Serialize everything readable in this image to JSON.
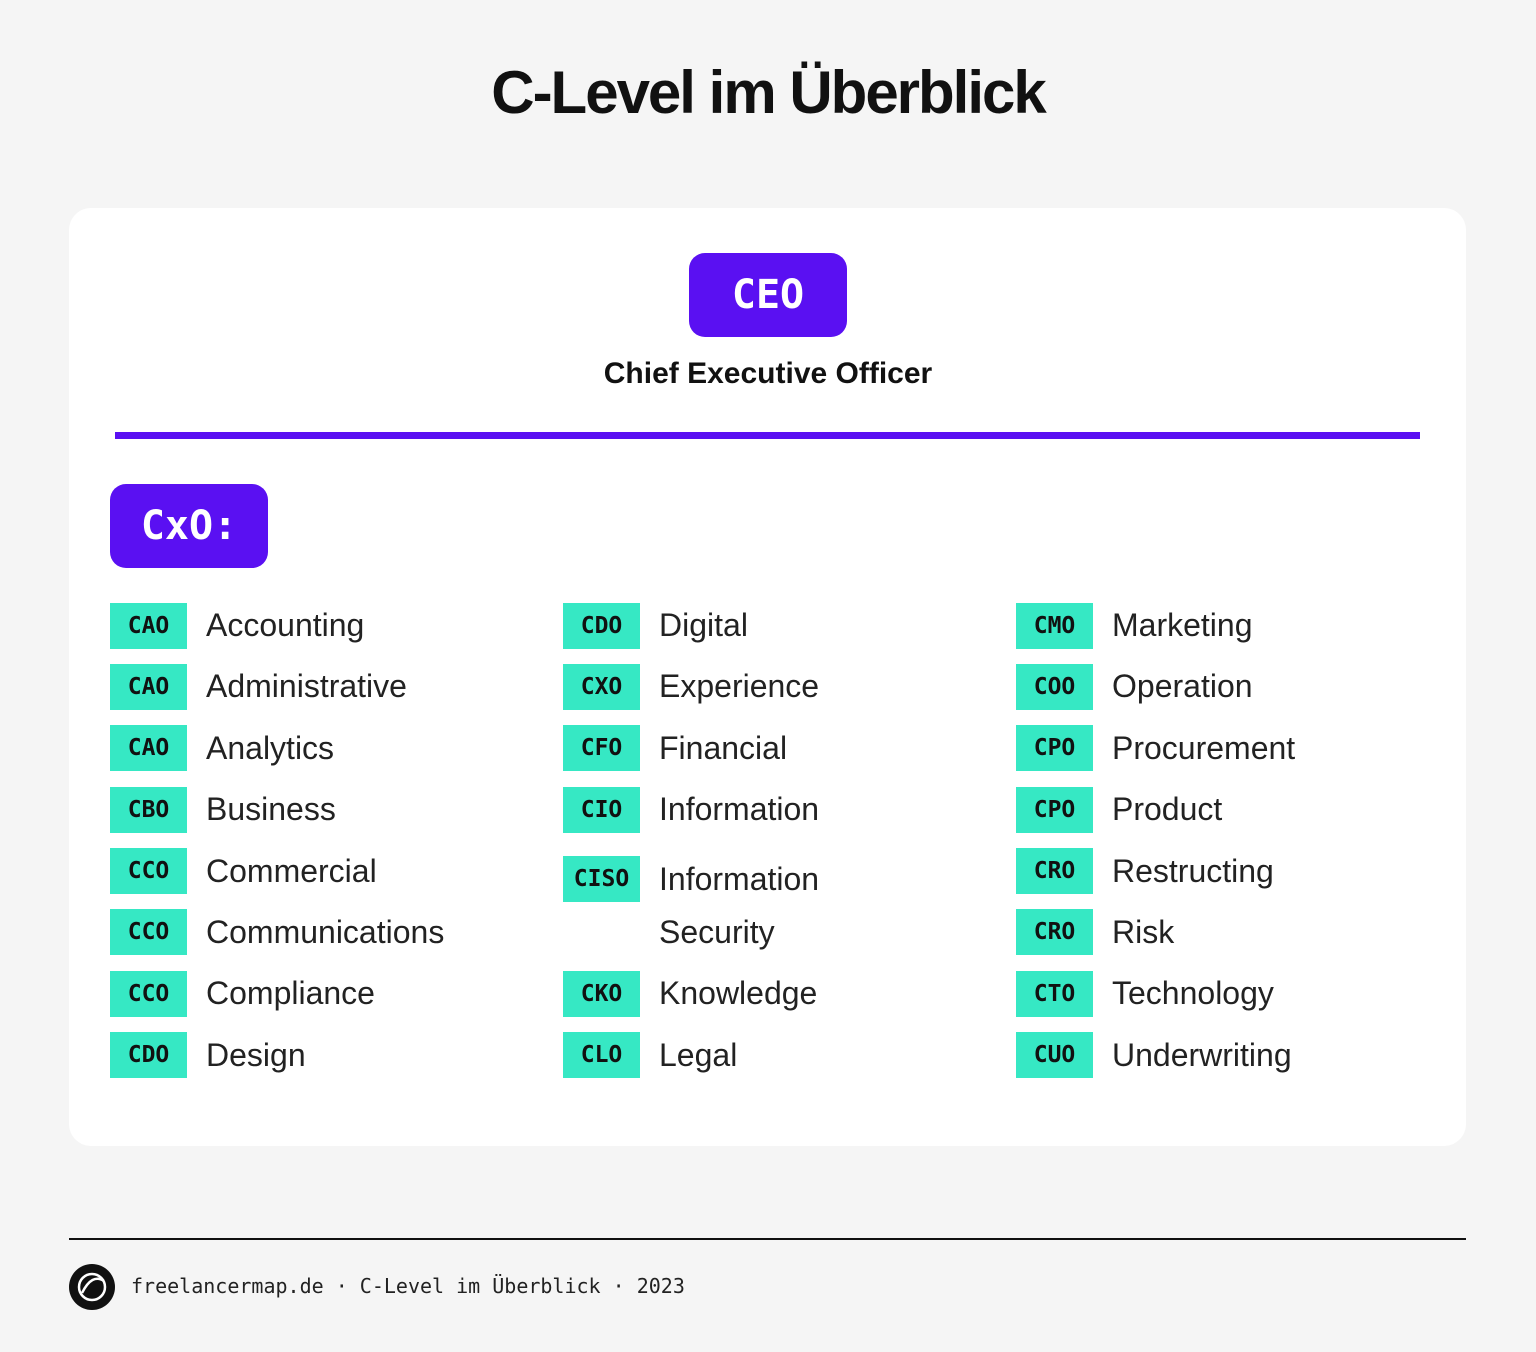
{
  "title": "C-Level im Überblick",
  "ceo": {
    "abbr": "CEO",
    "label": "Chief Executive Officer"
  },
  "cxo_label": "CxO:",
  "columns": [
    [
      {
        "abbr": "CAO",
        "label": "Accounting"
      },
      {
        "abbr": "CAO",
        "label": "Administrative"
      },
      {
        "abbr": "CAO",
        "label": "Analytics"
      },
      {
        "abbr": "CBO",
        "label": "Business"
      },
      {
        "abbr": "CCO",
        "label": "Commercial"
      },
      {
        "abbr": "CCO",
        "label": "Communications"
      },
      {
        "abbr": "CCO",
        "label": "Compliance"
      },
      {
        "abbr": "CDO",
        "label": "Design"
      }
    ],
    [
      {
        "abbr": "CDO",
        "label": "Digital"
      },
      {
        "abbr": "CXO",
        "label": "Experience"
      },
      {
        "abbr": "CFO",
        "label": "Financial"
      },
      {
        "abbr": "CIO",
        "label": "Information"
      },
      {
        "abbr": "CISO",
        "label": "Information Security"
      },
      {
        "abbr": "CKO",
        "label": "Knowledge"
      },
      {
        "abbr": "CLO",
        "label": "Legal"
      }
    ],
    [
      {
        "abbr": "CMO",
        "label": "Marketing"
      },
      {
        "abbr": "COO",
        "label": "Operation"
      },
      {
        "abbr": "CPO",
        "label": "Procurement"
      },
      {
        "abbr": "CPO",
        "label": "Product"
      },
      {
        "abbr": "CRO",
        "label": "Restructing"
      },
      {
        "abbr": "CRO",
        "label": "Risk"
      },
      {
        "abbr": "CTO",
        "label": "Technology"
      },
      {
        "abbr": "CUO",
        "label": "Underwriting"
      }
    ]
  ],
  "footer": "freelancermap.de · C-Level im Überblick · 2023"
}
